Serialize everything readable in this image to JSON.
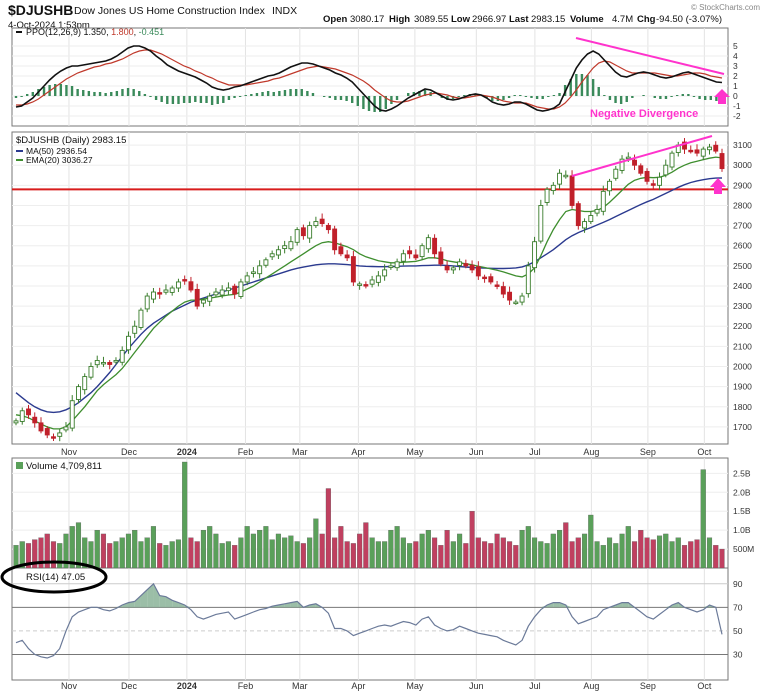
{
  "header": {
    "symbol": "$DJUSHB",
    "name": "Dow Jones US Home Construction Index",
    "exchange": "INDX",
    "date": "4-Oct-2024 1:53pm",
    "open_label": "Open",
    "open": "3080.17",
    "high_label": "High",
    "high": "3089.55",
    "low_label": "Low",
    "low": "2966.97",
    "last_label": "Last",
    "last": "2983.15",
    "volume_label": "Volume",
    "volume": "4.7M",
    "chg_label": "Chg",
    "chg": "-94.50 (-3.07%)",
    "watermark": "© StockCharts.com"
  },
  "colors": {
    "price_up": "#3a7d2c",
    "price_down": "#c0202a",
    "ma50": "#2b3a8f",
    "ema20": "#3e8e2e",
    "ppo_line": "#111111",
    "ppo_signal": "#c0392b",
    "histogram": "#3a8a5a",
    "volume_up": "#5aa05a",
    "volume_down": "#c04060",
    "rsi": "#6b7a99",
    "annotation_pink": "#ff33cc",
    "hline_red": "#d81c1c"
  },
  "panels": {
    "ppo": {
      "legend": "PPO(12,26,9) 1.350, 1.800, -0.451",
      "legend_parts": [
        "PPO(12,26,9) ",
        "1.350",
        ", ",
        "1.800",
        ", ",
        "-0.451"
      ],
      "annotation": "Negative Divergence"
    },
    "price": {
      "legend": "$DJUSHB (Daily) 2983.15",
      "ma_legend": "MA(50) 2936.54",
      "ema_legend": "EMA(20) 3036.27"
    },
    "volume": {
      "legend": "Volume 4,709,811"
    },
    "rsi": {
      "legend": "RSI(14) 47.05"
    }
  },
  "chart_data": [
    {
      "type": "line",
      "title": "PPO(12,26,9)",
      "y_ticks": [
        "5",
        "4",
        "3",
        "2",
        "1",
        "0",
        "-1",
        "-2"
      ],
      "ylim": [
        -2.6,
        5.6
      ],
      "series": [
        {
          "name": "PPO",
          "values": [
            -1.1,
            -1.0,
            -0.6,
            -0.2,
            0.4,
            1.0,
            1.6,
            2.1,
            2.5,
            2.8,
            3.0,
            3.0,
            3.1,
            3.2,
            3.3,
            3.4,
            3.5,
            3.7,
            4.0,
            4.4,
            4.8,
            5.0,
            5.0,
            4.8,
            4.5,
            4.0,
            3.6,
            3.1,
            2.8,
            2.5,
            2.3,
            2.1,
            1.9,
            1.6,
            1.3,
            0.9,
            0.7,
            0.6,
            0.7,
            0.9,
            1.0,
            1.2,
            1.4,
            1.6,
            1.8,
            2.0,
            2.1,
            2.3,
            2.6,
            2.9,
            3.1,
            3.3,
            3.3,
            3.2,
            3.0,
            2.8,
            2.6,
            2.3,
            2.1,
            1.8,
            1.4,
            0.8,
            0.2,
            -0.4,
            -1.0,
            -1.4,
            -1.5,
            -1.3,
            -1.0,
            -0.6,
            -0.2,
            0.1,
            0.4,
            0.7,
            0.6,
            0.3,
            0.0,
            -0.3,
            -0.4,
            -0.3,
            -0.1,
            0.1,
            0.2,
            0.1,
            -0.2,
            -0.6,
            -0.8,
            -0.9,
            -0.8,
            -0.6,
            -0.6,
            -0.8,
            -1.1,
            -1.4,
            -1.5,
            -1.4,
            -1.2,
            -0.8,
            0.4,
            1.6,
            2.8,
            3.6,
            4.2,
            4.5,
            4.2,
            3.6,
            3.0,
            2.4,
            2.0,
            1.9,
            2.1,
            2.3,
            2.4,
            2.3,
            2.1,
            1.9,
            1.8,
            1.9,
            2.1,
            2.3,
            2.4,
            2.2,
            2.0,
            1.8,
            1.6,
            1.4,
            1.35
          ]
        },
        {
          "name": "Signal",
          "values": [
            -0.9,
            -0.9,
            -0.8,
            -0.6,
            -0.3,
            0.1,
            0.5,
            0.9,
            1.3,
            1.7,
            2.0,
            2.3,
            2.5,
            2.7,
            2.9,
            3.0,
            3.2,
            3.3,
            3.5,
            3.7,
            4.0,
            4.3,
            4.5,
            4.6,
            4.6,
            4.4,
            4.2,
            3.9,
            3.6,
            3.3,
            3.0,
            2.8,
            2.5,
            2.3,
            2.0,
            1.8,
            1.5,
            1.3,
            1.1,
            1.1,
            1.1,
            1.1,
            1.2,
            1.3,
            1.4,
            1.5,
            1.7,
            1.8,
            2.0,
            2.2,
            2.4,
            2.6,
            2.8,
            2.9,
            3.0,
            2.9,
            2.8,
            2.7,
            2.5,
            2.3,
            2.1,
            1.8,
            1.5,
            1.1,
            0.6,
            0.2,
            -0.2,
            -0.5,
            -0.6,
            -0.6,
            -0.5,
            -0.3,
            -0.1,
            0.1,
            0.2,
            0.3,
            0.2,
            0.1,
            -0.1,
            -0.2,
            -0.2,
            -0.1,
            0.0,
            0.1,
            0.0,
            -0.1,
            -0.3,
            -0.5,
            -0.6,
            -0.7,
            -0.7,
            -0.7,
            -0.9,
            -1.1,
            -1.2,
            -1.3,
            -1.3,
            -1.1,
            -0.7,
            -0.1,
            0.6,
            1.4,
            2.1,
            2.8,
            3.3,
            3.5,
            3.4,
            3.1,
            2.8,
            2.5,
            2.3,
            2.3,
            2.3,
            2.3,
            2.3,
            2.2,
            2.1,
            2.0,
            2.0,
            2.1,
            2.2,
            2.3,
            2.3,
            2.2,
            2.0,
            1.9,
            1.8
          ]
        }
      ]
    },
    {
      "type": "candlestick",
      "title": "$DJUSHB (Daily)",
      "y_ticks": [
        "3100",
        "3000",
        "2900",
        "2800",
        "2700",
        "2600",
        "2500",
        "2400",
        "2300",
        "2200",
        "2100",
        "2000",
        "1900",
        "1800",
        "1700"
      ],
      "ylim": [
        1615,
        3155
      ],
      "hline": 2880,
      "series": [
        {
          "name": "Close",
          "values": [
            1730,
            1780,
            1760,
            1720,
            1680,
            1660,
            1650,
            1670,
            1700,
            1830,
            1900,
            1950,
            2000,
            2030,
            2020,
            2010,
            2030,
            2080,
            2150,
            2200,
            2280,
            2350,
            2370,
            2360,
            2380,
            2390,
            2420,
            2430,
            2380,
            2300,
            2330,
            2350,
            2370,
            2380,
            2390,
            2360,
            2420,
            2450,
            2470,
            2500,
            2530,
            2560,
            2580,
            2600,
            2620,
            2680,
            2650,
            2700,
            2720,
            2710,
            2680,
            2580,
            2560,
            2540,
            2420,
            2410,
            2400,
            2430,
            2450,
            2480,
            2500,
            2520,
            2560,
            2560,
            2540,
            2600,
            2640,
            2560,
            2510,
            2480,
            2490,
            2520,
            2500,
            2480,
            2450,
            2440,
            2420,
            2400,
            2360,
            2330,
            2320,
            2350,
            2500,
            2620,
            2800,
            2880,
            2900,
            2960,
            2950,
            2800,
            2700,
            2720,
            2750,
            2780,
            2870,
            2920,
            2980,
            3030,
            3040,
            3000,
            2960,
            2920,
            2900,
            2940,
            3000,
            3060,
            3100,
            3080,
            3070,
            3060,
            3080,
            3090,
            3070,
            2983.15
          ]
        },
        {
          "name": "MA(50)",
          "values": [
            1870,
            1845,
            1820,
            1800,
            1785,
            1775,
            1772,
            1775,
            1785,
            1800,
            1820,
            1845,
            1870,
            1900,
            1935,
            1970,
            2010,
            2050,
            2090,
            2125,
            2160,
            2190,
            2215,
            2235,
            2255,
            2275,
            2290,
            2305,
            2320,
            2330,
            2340,
            2350,
            2360,
            2370,
            2380,
            2390,
            2400,
            2410,
            2420,
            2430,
            2440,
            2450,
            2460,
            2470,
            2480,
            2488,
            2494,
            2500,
            2505,
            2508,
            2510,
            2510,
            2508,
            2506,
            2503,
            2500,
            2498,
            2497,
            2496,
            2496,
            2497,
            2498,
            2499,
            2500,
            2500,
            2501,
            2502,
            2503,
            2503,
            2502,
            2500,
            2497,
            2494,
            2492,
            2490,
            2489,
            2488,
            2487,
            2487,
            2488,
            2490,
            2495,
            2505,
            2520,
            2540,
            2560,
            2580,
            2605,
            2630,
            2650,
            2665,
            2678,
            2690,
            2703,
            2716,
            2730,
            2745,
            2760,
            2775,
            2790,
            2805,
            2818,
            2830,
            2845,
            2860,
            2875,
            2890,
            2903,
            2914,
            2922,
            2928,
            2933,
            2936,
            2936.54
          ]
        },
        {
          "name": "EMA(20)",
          "values": [
            1760,
            1755,
            1745,
            1730,
            1715,
            1700,
            1690,
            1690,
            1700,
            1730,
            1765,
            1800,
            1840,
            1880,
            1910,
            1935,
            1960,
            1990,
            2030,
            2070,
            2110,
            2150,
            2190,
            2220,
            2250,
            2275,
            2300,
            2320,
            2330,
            2330,
            2335,
            2340,
            2345,
            2350,
            2355,
            2358,
            2370,
            2385,
            2400,
            2420,
            2440,
            2460,
            2480,
            2500,
            2520,
            2540,
            2560,
            2580,
            2600,
            2615,
            2620,
            2615,
            2605,
            2595,
            2580,
            2560,
            2545,
            2535,
            2525,
            2520,
            2515,
            2515,
            2518,
            2520,
            2522,
            2530,
            2540,
            2540,
            2535,
            2525,
            2520,
            2515,
            2510,
            2505,
            2498,
            2492,
            2485,
            2478,
            2470,
            2460,
            2450,
            2445,
            2460,
            2490,
            2550,
            2620,
            2680,
            2730,
            2770,
            2780,
            2775,
            2770,
            2770,
            2775,
            2790,
            2815,
            2845,
            2875,
            2905,
            2925,
            2935,
            2940,
            2938,
            2940,
            2950,
            2965,
            2985,
            3000,
            3012,
            3020,
            3028,
            3035,
            3040,
            3036.27
          ]
        }
      ]
    },
    {
      "type": "bar",
      "title": "Volume",
      "y_ticks": [
        "2.5B",
        "2.0B",
        "1.5B",
        "1.0B",
        "500M"
      ],
      "ylim": [
        0,
        2800
      ],
      "series": [
        {
          "name": "Volume (M)",
          "values": [
            600,
            700,
            650,
            750,
            800,
            900,
            700,
            650,
            900,
            1100,
            1200,
            800,
            700,
            1000,
            900,
            650,
            700,
            800,
            900,
            1000,
            700,
            800,
            1100,
            650,
            600,
            700,
            750,
            2800,
            800,
            700,
            1000,
            1100,
            900,
            650,
            700,
            600,
            800,
            1100,
            900,
            1000,
            1100,
            750,
            900,
            800,
            850,
            700,
            650,
            800,
            1300,
            900,
            2100,
            800,
            1100,
            700,
            650,
            900,
            1200,
            800,
            700,
            700,
            1000,
            1100,
            800,
            650,
            700,
            900,
            1000,
            800,
            600,
            1000,
            700,
            900,
            650,
            1500,
            800,
            700,
            650,
            900,
            800,
            700,
            600,
            1000,
            1100,
            800,
            700,
            650,
            900,
            1000,
            1200,
            700,
            800,
            900,
            1400,
            700,
            600,
            800,
            650,
            900,
            1100,
            700,
            1000,
            800,
            750,
            850,
            900,
            700,
            800,
            600,
            700,
            750,
            2600,
            800,
            600,
            500
          ]
        }
      ]
    },
    {
      "type": "area",
      "title": "RSI(14)",
      "y_ticks": [
        "90",
        "70",
        "50",
        "30"
      ],
      "ylim": [
        10,
        100
      ],
      "series": [
        {
          "name": "RSI(14)",
          "values": [
            40,
            42,
            35,
            30,
            28,
            27,
            29,
            35,
            50,
            62,
            66,
            68,
            70,
            70,
            68,
            67,
            69,
            72,
            74,
            75,
            80,
            85,
            90,
            80,
            79,
            76,
            74,
            72,
            68,
            62,
            60,
            62,
            64,
            65,
            66,
            60,
            62,
            64,
            66,
            68,
            69,
            71,
            72,
            73,
            74,
            75,
            70,
            72,
            73,
            70,
            65,
            52,
            52,
            50,
            46,
            48,
            50,
            52,
            54,
            55,
            54,
            56,
            58,
            57,
            55,
            60,
            62,
            55,
            52,
            50,
            51,
            54,
            52,
            50,
            48,
            47,
            46,
            45,
            42,
            40,
            38,
            42,
            54,
            62,
            68,
            72,
            74,
            74,
            72,
            62,
            56,
            58,
            60,
            62,
            68,
            70,
            72,
            74,
            74,
            70,
            66,
            62,
            60,
            64,
            68,
            72,
            74,
            70,
            68,
            66,
            68,
            72,
            70,
            47.05
          ]
        }
      ]
    }
  ],
  "x_axis": {
    "months": [
      "Nov",
      "Dec",
      "2024",
      "Feb",
      "Mar",
      "Apr",
      "May",
      "Jun",
      "Jul",
      "Aug",
      "Sep",
      "Oct"
    ]
  }
}
